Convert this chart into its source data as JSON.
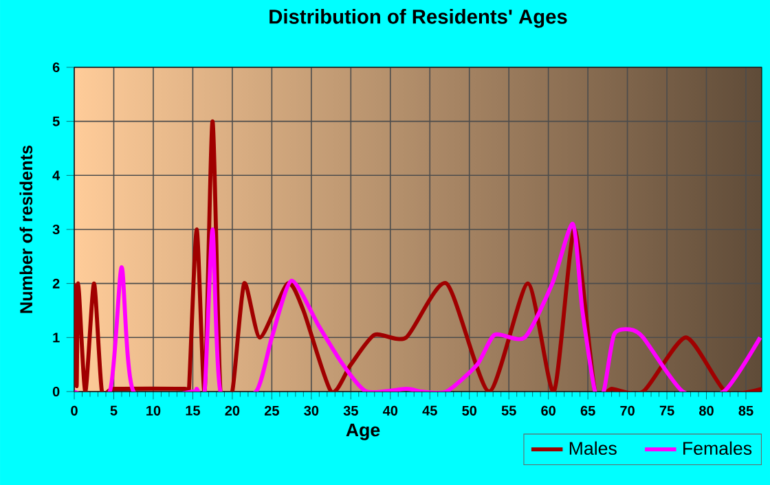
{
  "chart_data": {
    "type": "line",
    "title": "Distribution of Residents' Ages",
    "xlabel": "Age",
    "ylabel": "Number of residents",
    "xlim": [
      0,
      87
    ],
    "ylim": [
      0,
      6
    ],
    "xticks": [
      0,
      5,
      10,
      15,
      20,
      25,
      30,
      35,
      40,
      45,
      50,
      55,
      60,
      65,
      70,
      75,
      80,
      85
    ],
    "yticks": [
      0,
      1,
      2,
      3,
      4,
      5,
      6
    ],
    "grid": true,
    "legend": "bottom right",
    "marker": "none",
    "line_style": "solid",
    "series": [
      {
        "name": "Males",
        "color": "#a00000",
        "x": [
          0,
          0.3,
          0.5,
          1.4,
          2.5,
          3.5,
          5,
          14,
          14.5,
          15.5,
          16.5,
          17.5,
          18.5,
          20,
          21.5,
          23.5,
          27,
          29,
          32.5,
          35,
          38,
          42,
          47.1,
          52.5,
          57.4,
          60.7,
          63.3,
          65.9,
          68,
          72,
          77.4,
          82.4,
          87
        ],
        "values": [
          2,
          0.1,
          2,
          0,
          2,
          0,
          0.05,
          0.05,
          0,
          3,
          0,
          5,
          0,
          0,
          2,
          1,
          2,
          1.5,
          0,
          0.5,
          1.05,
          1,
          2,
          0,
          2,
          0,
          3,
          0,
          0.05,
          0,
          1,
          0,
          0.05
        ]
      },
      {
        "name": "Females",
        "color": "#ff00ff",
        "x": [
          0,
          4.5,
          6,
          7.5,
          15,
          15.5,
          16.5,
          17.5,
          18.5,
          23,
          25,
          27.5,
          31,
          34,
          37,
          42,
          44,
          47.1,
          51,
          53.2,
          57,
          60.5,
          63.1,
          64.3,
          65.9,
          67,
          68.3,
          70.3,
          72,
          77,
          82.2,
          86.8
        ],
        "values": [
          0,
          0,
          2.3,
          0,
          0,
          0.05,
          0,
          3,
          0,
          0,
          1,
          2.05,
          1.2,
          0.5,
          0,
          0.05,
          0,
          0,
          0.5,
          1.05,
          1,
          2,
          3.1,
          1.5,
          0,
          0,
          1.05,
          1.15,
          1,
          0,
          0,
          1
        ]
      }
    ]
  }
}
